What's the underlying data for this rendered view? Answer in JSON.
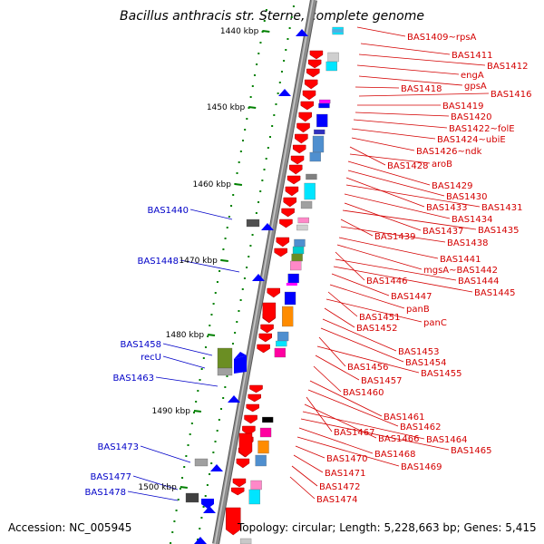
{
  "title": "Bacillus anthracis str. Sterne, complete genome",
  "footer": {
    "accession": "Accession: NC_005945",
    "topology": "Topology: circular; Length: 5,228,663 bp; Genes: 5,415"
  },
  "kbp_labels": [
    "1440 kbp",
    "1450 kbp",
    "1460 kbp",
    "1470 kbp",
    "1480 kbp",
    "1490 kbp",
    "1500 kbp"
  ],
  "right_labels": [
    "BAS1409~rpsA",
    "BAS1411",
    "BAS1412",
    "engA",
    "gpsA",
    "BAS1418",
    "BAS1416",
    "BAS1419",
    "BAS1420",
    "BAS1422~folE",
    "BAS1424~ubiE",
    "BAS1426~ndk",
    "BAS1428",
    "aroB",
    "BAS1429",
    "BAS1430",
    "BAS1433",
    "BAS1431",
    "BAS1434",
    "BAS1437",
    "BAS1435",
    "BAS1439",
    "BAS1438",
    "BAS1441",
    "mgsA~BAS1442",
    "BAS1446",
    "BAS1444",
    "BAS1445",
    "BAS1447",
    "panB",
    "BAS1451",
    "panC",
    "BAS1452",
    "BAS1453",
    "BAS1454",
    "BAS1456",
    "BAS1455",
    "BAS1457",
    "BAS1460",
    "BAS1461",
    "BAS1462",
    "BAS1467",
    "BAS1466",
    "BAS1464",
    "BAS1465",
    "BAS1468",
    "BAS1469",
    "BAS1470",
    "BAS1471",
    "BAS1472",
    "BAS1474"
  ],
  "left_labels": [
    "BAS1440",
    "BAS1448",
    "BAS1458",
    "recU",
    "BAS1463",
    "BAS1473",
    "BAS1477",
    "BAS1478"
  ],
  "colors": {
    "label_red": "#d40000",
    "label_blue": "#0000c8",
    "tick_green": "#008000",
    "backbone": "#8c8c8c",
    "gene_red": "#ff0000",
    "gene_blue": "#0000ff"
  }
}
